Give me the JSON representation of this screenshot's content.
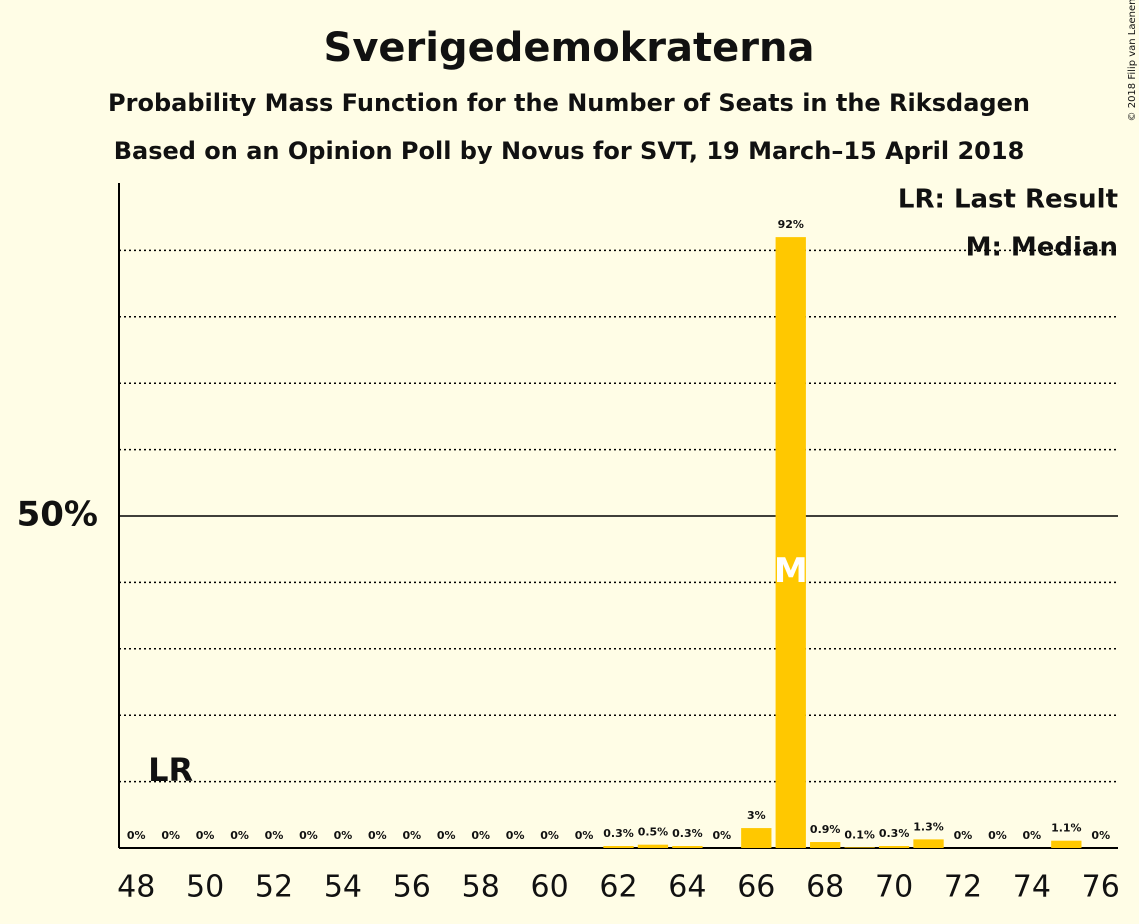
{
  "chart_data": {
    "type": "bar",
    "title": "Sverigedemokraterna",
    "subtitle": "Probability Mass Function for the Number of Seats in the Riksdagen",
    "subtitle2": "Based on an Opinion Poll by Novus for SVT, 19 March–15 April 2018",
    "copyright": "© 2018 Filip van Laenen",
    "x": [
      48,
      49,
      50,
      51,
      52,
      53,
      54,
      55,
      56,
      57,
      58,
      59,
      60,
      61,
      62,
      63,
      64,
      65,
      66,
      67,
      68,
      69,
      70,
      71,
      72,
      73,
      74,
      75,
      76
    ],
    "values": [
      0,
      0,
      0,
      0,
      0,
      0,
      0,
      0,
      0,
      0,
      0,
      0,
      0,
      0,
      0.3,
      0.5,
      0.3,
      0,
      3,
      92,
      0.9,
      0.1,
      0.3,
      1.3,
      0,
      0,
      0,
      1.1,
      0
    ],
    "value_labels": [
      "0%",
      "0%",
      "0%",
      "0%",
      "0%",
      "0%",
      "0%",
      "0%",
      "0%",
      "0%",
      "0%",
      "0%",
      "0%",
      "0%",
      "0.3%",
      "0.5%",
      "0.3%",
      "0%",
      "3%",
      "92%",
      "0.9%",
      "0.1%",
      "0.3%",
      "1.3%",
      "0%",
      "0%",
      "0%",
      "1.1%",
      "0%"
    ],
    "color": "#ffc800",
    "xlim": [
      47.5,
      76.5
    ],
    "xticks": [
      48,
      50,
      52,
      54,
      56,
      58,
      60,
      62,
      64,
      66,
      68,
      70,
      72,
      74,
      76
    ],
    "ylim": [
      0,
      100
    ],
    "yticks": [
      {
        "value": 50,
        "label": "50%"
      }
    ],
    "dotted_grid": [
      10,
      20,
      30,
      40,
      60,
      70,
      80,
      90
    ],
    "last_result": {
      "x": 49,
      "label": "LR"
    },
    "median": {
      "x": 67,
      "label": "M"
    },
    "legend": [
      "LR: Last Result",
      "M: Median"
    ]
  }
}
